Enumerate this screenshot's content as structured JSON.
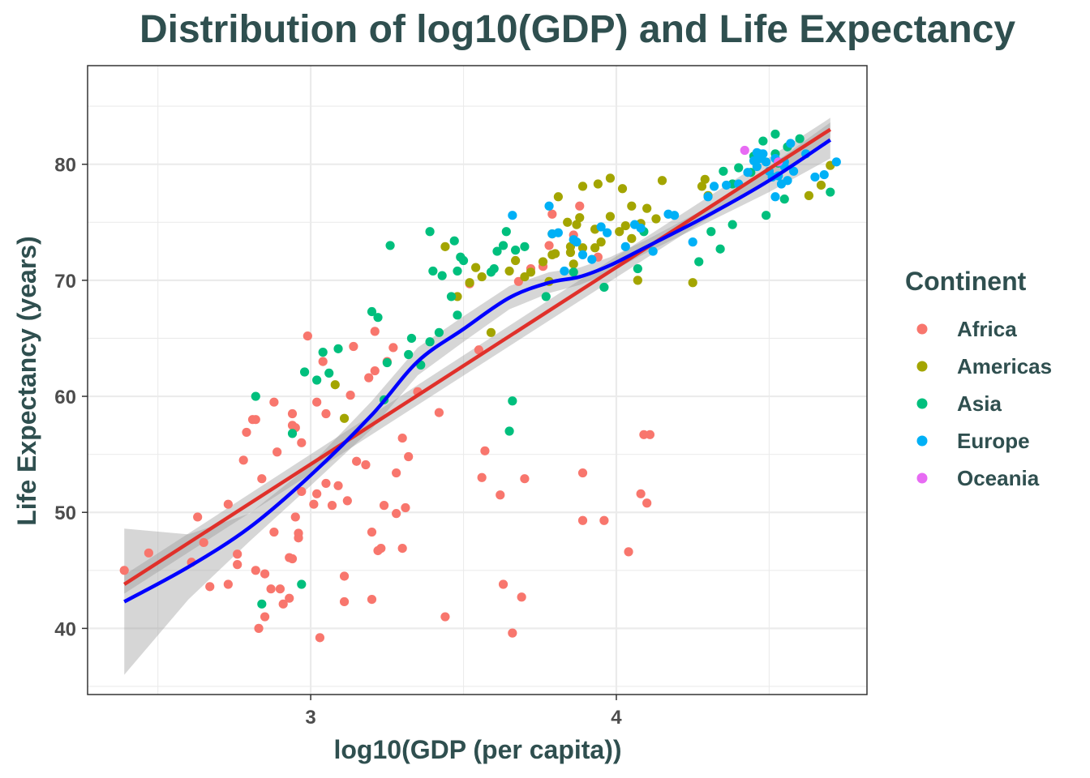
{
  "chart_data": {
    "type": "scatter",
    "title": "Distribution of log10(GDP) and Life Expectancy",
    "xlabel": "log10(GDP (per capita))",
    "ylabel": "Life Expectancy (years)",
    "xlim": [
      2.27,
      4.82
    ],
    "ylim": [
      34.3,
      88.5
    ],
    "x_ticks": [
      3,
      4
    ],
    "x_tick_labels": [
      "3",
      "4"
    ],
    "y_ticks": [
      40,
      50,
      60,
      70,
      80
    ],
    "y_tick_labels": [
      "40",
      "50",
      "60",
      "70",
      "80"
    ],
    "grid": true,
    "legend": {
      "title": "Continent",
      "position": "right",
      "entries": [
        {
          "name": "Africa",
          "color": "#F8766D"
        },
        {
          "name": "Americas",
          "color": "#A3A500"
        },
        {
          "name": "Asia",
          "color": "#00BF7D"
        },
        {
          "name": "Europe",
          "color": "#00B0F6"
        },
        {
          "name": "Oceania",
          "color": "#E76BF3"
        }
      ]
    },
    "series": [
      {
        "name": "Africa",
        "color": "#F8766D",
        "points": [
          [
            2.39,
            45.0
          ],
          [
            2.47,
            46.5
          ],
          [
            2.63,
            49.6
          ],
          [
            2.61,
            45.7
          ],
          [
            2.65,
            47.4
          ],
          [
            2.67,
            43.6
          ],
          [
            2.73,
            50.7
          ],
          [
            2.73,
            43.8
          ],
          [
            2.76,
            46.4
          ],
          [
            2.76,
            45.5
          ],
          [
            2.78,
            54.5
          ],
          [
            2.79,
            56.9
          ],
          [
            2.81,
            58.0
          ],
          [
            2.82,
            58.0
          ],
          [
            2.82,
            45.0
          ],
          [
            2.83,
            40.0
          ],
          [
            2.84,
            52.9
          ],
          [
            2.85,
            41.0
          ],
          [
            2.85,
            44.7
          ],
          [
            2.87,
            43.4
          ],
          [
            2.88,
            59.5
          ],
          [
            2.88,
            48.3
          ],
          [
            2.89,
            55.2
          ],
          [
            2.9,
            43.4
          ],
          [
            2.91,
            42.1
          ],
          [
            2.93,
            42.6
          ],
          [
            2.93,
            46.1
          ],
          [
            2.94,
            46.0
          ],
          [
            2.94,
            58.5
          ],
          [
            2.94,
            57.5
          ],
          [
            2.95,
            49.6
          ],
          [
            2.95,
            57.3
          ],
          [
            2.96,
            48.2
          ],
          [
            2.96,
            47.8
          ],
          [
            2.97,
            56.0
          ],
          [
            2.97,
            51.8
          ],
          [
            2.99,
            65.2
          ],
          [
            3.01,
            50.7
          ],
          [
            3.02,
            51.6
          ],
          [
            3.02,
            59.5
          ],
          [
            3.03,
            39.2
          ],
          [
            3.04,
            63.0
          ],
          [
            3.05,
            52.5
          ],
          [
            3.05,
            58.5
          ],
          [
            3.07,
            50.6
          ],
          [
            3.09,
            52.3
          ],
          [
            3.11,
            44.5
          ],
          [
            3.11,
            42.3
          ],
          [
            3.12,
            51.0
          ],
          [
            3.13,
            60.1
          ],
          [
            3.14,
            64.3
          ],
          [
            3.15,
            54.4
          ],
          [
            3.18,
            54.1
          ],
          [
            3.19,
            61.6
          ],
          [
            3.2,
            48.3
          ],
          [
            3.2,
            42.5
          ],
          [
            3.21,
            62.2
          ],
          [
            3.21,
            65.6
          ],
          [
            3.22,
            46.7
          ],
          [
            3.23,
            46.9
          ],
          [
            3.24,
            50.6
          ],
          [
            3.25,
            63.0
          ],
          [
            3.27,
            64.2
          ],
          [
            3.28,
            53.4
          ],
          [
            3.28,
            49.9
          ],
          [
            3.3,
            56.4
          ],
          [
            3.3,
            46.9
          ],
          [
            3.31,
            50.4
          ],
          [
            3.32,
            54.8
          ],
          [
            3.35,
            60.4
          ],
          [
            3.42,
            58.6
          ],
          [
            3.44,
            41.0
          ],
          [
            3.52,
            69.7
          ],
          [
            3.55,
            64.0
          ],
          [
            3.56,
            53.0
          ],
          [
            3.57,
            55.3
          ],
          [
            3.62,
            51.5
          ],
          [
            3.63,
            43.8
          ],
          [
            3.66,
            39.6
          ],
          [
            3.68,
            69.9
          ],
          [
            3.69,
            42.7
          ],
          [
            3.7,
            52.9
          ],
          [
            3.72,
            71.0
          ],
          [
            3.76,
            71.2
          ],
          [
            3.79,
            75.7
          ],
          [
            3.86,
            73.9
          ],
          [
            3.88,
            76.4
          ],
          [
            3.89,
            53.4
          ],
          [
            3.89,
            49.3
          ],
          [
            3.96,
            49.3
          ],
          [
            3.94,
            72.0
          ],
          [
            4.04,
            46.6
          ],
          [
            4.08,
            51.6
          ],
          [
            4.09,
            56.7
          ],
          [
            4.1,
            50.8
          ],
          [
            4.11,
            56.7
          ],
          [
            3.78,
            73.0
          ]
        ]
      },
      {
        "name": "Americas",
        "color": "#A3A500",
        "points": [
          [
            3.08,
            61.0
          ],
          [
            3.11,
            58.1
          ],
          [
            3.44,
            72.9
          ],
          [
            3.48,
            68.6
          ],
          [
            3.52,
            69.8
          ],
          [
            3.54,
            71.1
          ],
          [
            3.56,
            70.3
          ],
          [
            3.59,
            65.5
          ],
          [
            3.65,
            70.8
          ],
          [
            3.67,
            71.7
          ],
          [
            3.7,
            70.3
          ],
          [
            3.72,
            70.7
          ],
          [
            3.76,
            71.6
          ],
          [
            3.78,
            69.9
          ],
          [
            3.79,
            72.2
          ],
          [
            3.79,
            74.0
          ],
          [
            3.8,
            72.3
          ],
          [
            3.81,
            77.2
          ],
          [
            3.84,
            75.0
          ],
          [
            3.85,
            72.9
          ],
          [
            3.85,
            72.4
          ],
          [
            3.86,
            71.4
          ],
          [
            3.87,
            74.8
          ],
          [
            3.88,
            75.4
          ],
          [
            3.89,
            78.1
          ],
          [
            3.89,
            72.8
          ],
          [
            3.93,
            72.8
          ],
          [
            3.93,
            74.4
          ],
          [
            3.94,
            78.3
          ],
          [
            3.95,
            73.3
          ],
          [
            3.98,
            78.8
          ],
          [
            3.98,
            75.5
          ],
          [
            4.01,
            74.2
          ],
          [
            4.02,
            77.9
          ],
          [
            4.03,
            74.7
          ],
          [
            4.05,
            76.4
          ],
          [
            4.07,
            70.0
          ],
          [
            4.08,
            74.9
          ],
          [
            4.1,
            76.2
          ],
          [
            4.13,
            75.3
          ],
          [
            4.15,
            78.6
          ],
          [
            4.25,
            69.8
          ],
          [
            4.28,
            78.1
          ],
          [
            4.29,
            78.7
          ],
          [
            4.3,
            77.3
          ],
          [
            4.45,
            80.7
          ],
          [
            4.63,
            77.3
          ],
          [
            4.67,
            78.2
          ],
          [
            4.7,
            79.9
          ],
          [
            4.05,
            73.6
          ]
        ]
      },
      {
        "name": "Asia",
        "color": "#00BF7D",
        "points": [
          [
            2.82,
            60.0
          ],
          [
            2.94,
            56.8
          ],
          [
            2.97,
            43.8
          ],
          [
            2.98,
            62.1
          ],
          [
            3.02,
            61.4
          ],
          [
            3.04,
            63.8
          ],
          [
            3.06,
            62.0
          ],
          [
            3.09,
            64.1
          ],
          [
            2.84,
            42.1
          ],
          [
            3.2,
            67.3
          ],
          [
            3.22,
            66.8
          ],
          [
            3.24,
            59.7
          ],
          [
            3.25,
            62.9
          ],
          [
            3.26,
            73.0
          ],
          [
            3.32,
            63.6
          ],
          [
            3.33,
            65.0
          ],
          [
            3.36,
            62.7
          ],
          [
            3.39,
            64.7
          ],
          [
            3.42,
            65.5
          ],
          [
            3.39,
            74.2
          ],
          [
            3.4,
            70.8
          ],
          [
            3.43,
            70.4
          ],
          [
            3.46,
            68.6
          ],
          [
            3.47,
            73.4
          ],
          [
            3.48,
            67.0
          ],
          [
            3.48,
            70.8
          ],
          [
            3.49,
            72.0
          ],
          [
            3.5,
            71.7
          ],
          [
            3.59,
            70.7
          ],
          [
            3.6,
            71.0
          ],
          [
            3.61,
            72.5
          ],
          [
            3.63,
            73.0
          ],
          [
            3.64,
            74.2
          ],
          [
            3.65,
            57.0
          ],
          [
            3.66,
            59.6
          ],
          [
            3.67,
            72.6
          ],
          [
            3.7,
            72.9
          ],
          [
            3.77,
            68.6
          ],
          [
            3.86,
            70.7
          ],
          [
            3.96,
            69.4
          ],
          [
            4.07,
            71.0
          ],
          [
            4.09,
            74.2
          ],
          [
            4.27,
            71.6
          ],
          [
            4.31,
            74.2
          ],
          [
            4.34,
            72.7
          ],
          [
            4.35,
            79.4
          ],
          [
            4.38,
            74.8
          ],
          [
            4.4,
            79.7
          ],
          [
            4.44,
            79.3
          ],
          [
            4.45,
            80.7
          ],
          [
            4.48,
            82.0
          ],
          [
            4.49,
            75.6
          ],
          [
            4.52,
            82.6
          ],
          [
            4.53,
            80.1
          ],
          [
            4.55,
            77.0
          ],
          [
            4.56,
            81.5
          ],
          [
            4.6,
            82.2
          ],
          [
            4.7,
            77.6
          ],
          [
            4.52,
            80.9
          ],
          [
            4.38,
            78.3
          ]
        ]
      },
      {
        "name": "Europe",
        "color": "#00B0F6",
        "points": [
          [
            3.66,
            75.6
          ],
          [
            3.78,
            76.4
          ],
          [
            3.79,
            74.0
          ],
          [
            3.81,
            74.1
          ],
          [
            3.83,
            70.8
          ],
          [
            3.86,
            73.5
          ],
          [
            3.87,
            73.3
          ],
          [
            3.89,
            72.2
          ],
          [
            3.92,
            71.8
          ],
          [
            3.95,
            74.6
          ],
          [
            3.97,
            74.1
          ],
          [
            4.03,
            72.9
          ],
          [
            4.06,
            74.8
          ],
          [
            4.08,
            74.5
          ],
          [
            4.12,
            72.5
          ],
          [
            4.17,
            75.7
          ],
          [
            4.19,
            75.6
          ],
          [
            4.25,
            73.3
          ],
          [
            4.3,
            77.2
          ],
          [
            4.32,
            78.1
          ],
          [
            4.36,
            78.2
          ],
          [
            4.4,
            78.3
          ],
          [
            4.43,
            79.3
          ],
          [
            4.45,
            80.3
          ],
          [
            4.46,
            81.0
          ],
          [
            4.46,
            79.8
          ],
          [
            4.47,
            80.5
          ],
          [
            4.48,
            80.9
          ],
          [
            4.49,
            80.2
          ],
          [
            4.5,
            79.4
          ],
          [
            4.51,
            78.9
          ],
          [
            4.52,
            77.2
          ],
          [
            4.53,
            79.0
          ],
          [
            4.54,
            78.3
          ],
          [
            4.55,
            79.8
          ],
          [
            4.56,
            78.6
          ],
          [
            4.57,
            81.8
          ],
          [
            4.58,
            79.4
          ],
          [
            4.62,
            80.9
          ],
          [
            4.65,
            78.9
          ],
          [
            4.68,
            79.1
          ],
          [
            4.72,
            80.2
          ],
          [
            4.47,
            80.9
          ],
          [
            4.52,
            80.5
          ],
          [
            4.55,
            80.2
          ]
        ]
      },
      {
        "name": "Oceania",
        "color": "#E76BF3",
        "points": [
          [
            4.42,
            81.2
          ],
          [
            4.53,
            80.2
          ]
        ]
      }
    ],
    "fit_lines": [
      {
        "name": "linear",
        "color": "#E0302A",
        "x": [
          2.39,
          4.7
        ],
        "y": [
          43.8,
          83.0
        ],
        "band_lower": [
          43.0,
          82.1
        ],
        "band_upper": [
          44.6,
          84.0
        ]
      },
      {
        "name": "loess",
        "color": "#0000FF",
        "x": [
          2.39,
          2.6,
          2.8,
          3.0,
          3.2,
          3.35,
          3.5,
          3.65,
          3.78,
          3.88,
          3.98,
          4.1,
          4.3,
          4.5,
          4.7
        ],
        "y": [
          42.3,
          45.3,
          48.7,
          53.2,
          58.4,
          63.0,
          65.8,
          68.5,
          69.8,
          70.3,
          71.3,
          72.9,
          75.6,
          78.6,
          82.1
        ],
        "band_lower": [
          36.0,
          42.5,
          47.5,
          52.3,
          57.2,
          61.8,
          64.7,
          67.5,
          68.9,
          69.6,
          70.7,
          72.4,
          75.0,
          77.6,
          80.5
        ],
        "band_upper": [
          48.6,
          48.1,
          49.9,
          54.1,
          59.6,
          64.2,
          66.9,
          69.5,
          70.7,
          71.1,
          72.0,
          73.5,
          76.3,
          79.8,
          83.6
        ]
      }
    ]
  }
}
